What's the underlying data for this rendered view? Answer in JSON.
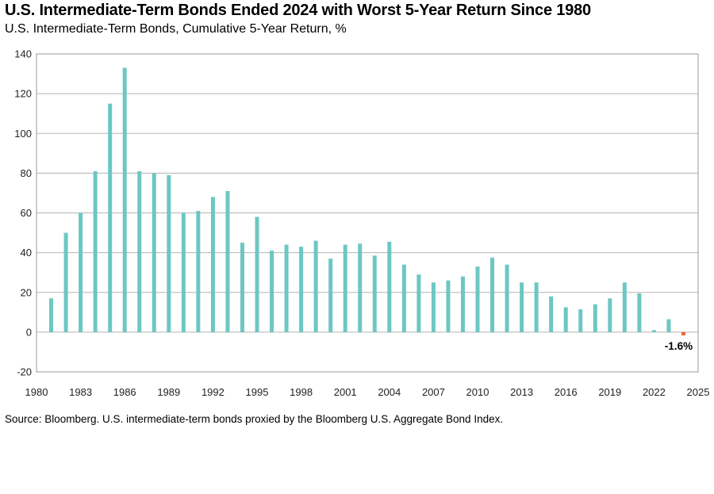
{
  "header": {
    "title": "U.S. Intermediate-Term Bonds Ended 2024 with Worst 5-Year Return Since 1980",
    "subtitle": "U.S. Intermediate-Term Bonds, Cumulative 5-Year Return, %"
  },
  "footer": {
    "source": "Source: Bloomberg. U.S. intermediate-term bonds proxied by the Bloomberg U.S. Aggregate Bond Index."
  },
  "chart_data": {
    "type": "bar",
    "title": "U.S. Intermediate-Term Bonds Ended 2024 with Worst 5-Year Return Since 1980",
    "subtitle": "U.S. Intermediate-Term Bonds, Cumulative 5-Year Return, %",
    "xlabel": "",
    "ylabel": "",
    "xlim": [
      1980,
      2025
    ],
    "ylim": [
      -20,
      140
    ],
    "grid": true,
    "x_ticks": [
      1980,
      1983,
      1986,
      1989,
      1992,
      1995,
      1998,
      2001,
      2004,
      2007,
      2010,
      2013,
      2016,
      2019,
      2022,
      2025
    ],
    "y_ticks": [
      -20,
      0,
      20,
      40,
      60,
      80,
      100,
      120,
      140
    ],
    "bar_color": "#6cc7c3",
    "highlight_color": "#e8643a",
    "x": [
      1981,
      1982,
      1983,
      1984,
      1985,
      1986,
      1987,
      1988,
      1989,
      1990,
      1991,
      1992,
      1993,
      1994,
      1995,
      1996,
      1997,
      1998,
      1999,
      2000,
      2001,
      2002,
      2003,
      2004,
      2005,
      2006,
      2007,
      2008,
      2009,
      2010,
      2011,
      2012,
      2013,
      2014,
      2015,
      2016,
      2017,
      2018,
      2019,
      2020,
      2021,
      2022,
      2023,
      2024
    ],
    "values": [
      17,
      50,
      60,
      81,
      115,
      133,
      81,
      80,
      79,
      60,
      61,
      68,
      71,
      45,
      58,
      41,
      44,
      43,
      46,
      37,
      44,
      44.5,
      38.5,
      45.5,
      34,
      29,
      25,
      26,
      28,
      33,
      37.5,
      34,
      25,
      25,
      18,
      12.5,
      11.5,
      14,
      17,
      25,
      19.5,
      1,
      6.5,
      -1.6
    ],
    "highlight": {
      "x": 2024,
      "value": -1.6,
      "label": "-1.6%"
    }
  }
}
